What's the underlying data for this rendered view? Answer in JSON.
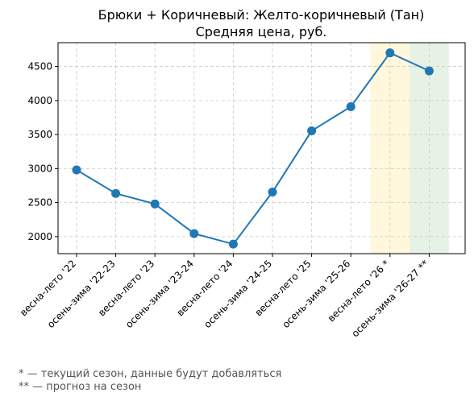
{
  "chart_data": {
    "type": "line",
    "title": [
      "Брюки + Коричневый: Желто-коричневый (Тан)",
      "Средняя цена, руб."
    ],
    "xlabel": "",
    "ylabel": "",
    "categories": [
      "весна-лето '22",
      "осень-зима '22-23",
      "весна-лето '23",
      "осень-зима '23-24",
      "весна-лето '24",
      "осень-зима '24-25",
      "весна-лето '25",
      "осень-зима '25-26",
      "весна-лето '26 *",
      "осень-зима '26-27 **"
    ],
    "series": [
      {
        "values": [
          2980,
          2635,
          2480,
          2045,
          1890,
          2655,
          3555,
          3910,
          4700,
          4435
        ]
      }
    ],
    "yticks": [
      2000,
      2500,
      3000,
      3500,
      4000,
      4500
    ],
    "ylim": [
      1750,
      4850
    ],
    "grid": true,
    "line_color": "#1f77b4",
    "highlights": [
      {
        "category": "весна-лето '26 *",
        "color": "#fff8dc"
      },
      {
        "category": "осень-зима '26-27 **",
        "color": "#e6f2e6"
      }
    ]
  },
  "footnotes": [
    "* — текущий сезон, данные будут добавляться",
    "** — прогноз на сезон"
  ]
}
